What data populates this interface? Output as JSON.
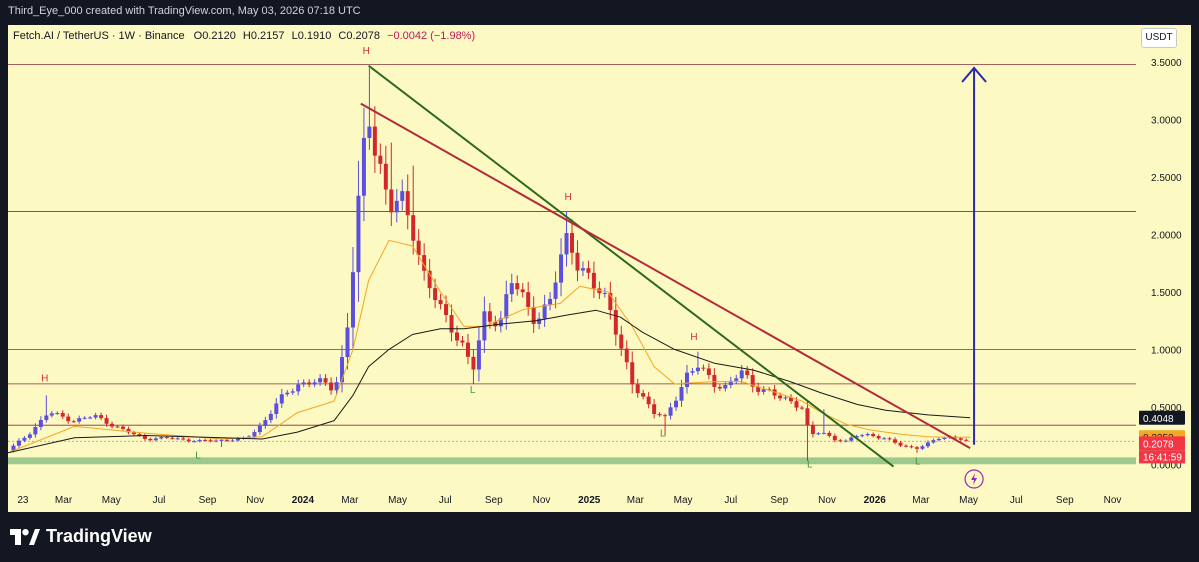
{
  "header": {
    "created_text": "Third_Eye_000 created with TradingView.com, May 03, 2026 07:18 UTC"
  },
  "legend": {
    "symbol_line": "Fetch.AI / TetherUS · 1W · Binance",
    "open": "O0.2120",
    "high": "H0.2157",
    "low": "L0.1910",
    "close": "C0.2078",
    "change": "−0.0042 (−1.98%)"
  },
  "currency_button": "USDT",
  "footer": {
    "brand": "TradingView"
  },
  "colors": {
    "background": "#fdf9c2",
    "up_candle": "#5b4fe0",
    "down_candle": "#d2282c",
    "ma_fast": "#f5a623",
    "ma_slow": "#1a1a1a",
    "green_trendline": "#2d6a1e",
    "red_trendline": "#b32a3a",
    "arrow": "#2b2aa8",
    "support_zone": "#7cb87a",
    "h_label": "#d32f2f",
    "l_label": "#3a9a3a"
  },
  "chart_data": {
    "type": "candlestick",
    "symbol": "Fetch.AI / TetherUS",
    "interval": "1W",
    "exchange": "Binance",
    "ylim": [
      -0.05,
      3.65
    ],
    "y_ticks": [
      "3.5000",
      "3.0000",
      "2.5000",
      "2.0000",
      "1.5000",
      "1.0000",
      "0.5000",
      "0.0000"
    ],
    "y_tick_values": [
      3.5,
      3.0,
      2.5,
      2.0,
      1.5,
      1.0,
      0.5,
      0.0
    ],
    "x_ticks": [
      {
        "label": "23",
        "date": "2023-01-01",
        "bold": false
      },
      {
        "label": "Mar",
        "date": "2023-03-01",
        "bold": false
      },
      {
        "label": "May",
        "date": "2023-05-01",
        "bold": false
      },
      {
        "label": "Jul",
        "date": "2023-07-01",
        "bold": false
      },
      {
        "label": "Sep",
        "date": "2023-09-01",
        "bold": false
      },
      {
        "label": "Nov",
        "date": "2023-11-01",
        "bold": false
      },
      {
        "label": "2024",
        "date": "2024-01-01",
        "bold": true
      },
      {
        "label": "Mar",
        "date": "2024-03-01",
        "bold": false
      },
      {
        "label": "May",
        "date": "2024-05-01",
        "bold": false
      },
      {
        "label": "Jul",
        "date": "2024-07-01",
        "bold": false
      },
      {
        "label": "Sep",
        "date": "2024-09-01",
        "bold": false
      },
      {
        "label": "Nov",
        "date": "2024-11-01",
        "bold": false
      },
      {
        "label": "2025",
        "date": "2025-01-01",
        "bold": true
      },
      {
        "label": "Mar",
        "date": "2025-03-01",
        "bold": false
      },
      {
        "label": "May",
        "date": "2025-05-01",
        "bold": false
      },
      {
        "label": "Jul",
        "date": "2025-07-01",
        "bold": false
      },
      {
        "label": "Sep",
        "date": "2025-09-01",
        "bold": false
      },
      {
        "label": "Nov",
        "date": "2025-11-01",
        "bold": false
      },
      {
        "label": "2026",
        "date": "2026-01-01",
        "bold": true
      },
      {
        "label": "Mar",
        "date": "2026-03-01",
        "bold": false
      },
      {
        "label": "May",
        "date": "2026-05-01",
        "bold": false
      },
      {
        "label": "Jul",
        "date": "2026-07-01",
        "bold": false
      },
      {
        "label": "Sep",
        "date": "2026-09-01",
        "bold": false
      },
      {
        "label": "Nov",
        "date": "2026-11-01",
        "bold": false
      }
    ],
    "x_range": [
      "2022-12-20",
      "2026-12-01"
    ],
    "close_path": [
      [
        "2022-12-20",
        0.12
      ],
      [
        "2023-01-15",
        0.26
      ],
      [
        "2023-02-10",
        0.45
      ],
      [
        "2023-03-15",
        0.38
      ],
      [
        "2023-04-10",
        0.42
      ],
      [
        "2023-05-15",
        0.3
      ],
      [
        "2023-06-15",
        0.22
      ],
      [
        "2023-07-15",
        0.23
      ],
      [
        "2023-08-20",
        0.2
      ],
      [
        "2023-09-20",
        0.21
      ],
      [
        "2023-10-20",
        0.22
      ],
      [
        "2023-11-10",
        0.35
      ],
      [
        "2023-12-01",
        0.55
      ],
      [
        "2023-12-25",
        0.7
      ],
      [
        "2024-01-20",
        0.72
      ],
      [
        "2024-02-10",
        0.66
      ],
      [
        "2024-02-25",
        1.05
      ],
      [
        "2024-03-05",
        1.7
      ],
      [
        "2024-03-15",
        2.5
      ],
      [
        "2024-03-25",
        3.05
      ],
      [
        "2024-04-05",
        2.75
      ],
      [
        "2024-04-20",
        2.2
      ],
      [
        "2024-05-05",
        2.3
      ],
      [
        "2024-05-20",
        2.1
      ],
      [
        "2024-06-05",
        1.6
      ],
      [
        "2024-06-25",
        1.35
      ],
      [
        "2024-07-10",
        1.2
      ],
      [
        "2024-07-25",
        1.0
      ],
      [
        "2024-08-05",
        0.8
      ],
      [
        "2024-08-20",
        1.3
      ],
      [
        "2024-09-10",
        1.25
      ],
      [
        "2024-09-25",
        1.6
      ],
      [
        "2024-10-10",
        1.45
      ],
      [
        "2024-10-25",
        1.25
      ],
      [
        "2024-11-10",
        1.35
      ],
      [
        "2024-11-25",
        1.8
      ],
      [
        "2024-12-05",
        2.05
      ],
      [
        "2024-12-20",
        1.65
      ],
      [
        "2025-01-10",
        1.55
      ],
      [
        "2025-01-25",
        1.45
      ],
      [
        "2025-02-10",
        1.0
      ],
      [
        "2025-02-25",
        0.7
      ],
      [
        "2025-03-10",
        0.6
      ],
      [
        "2025-03-25",
        0.45
      ],
      [
        "2025-04-08",
        0.4
      ],
      [
        "2025-04-20",
        0.55
      ],
      [
        "2025-05-05",
        0.78
      ],
      [
        "2025-05-20",
        0.85
      ],
      [
        "2025-06-10",
        0.7
      ],
      [
        "2025-06-25",
        0.68
      ],
      [
        "2025-07-15",
        0.8
      ],
      [
        "2025-07-30",
        0.68
      ],
      [
        "2025-08-15",
        0.65
      ],
      [
        "2025-08-30",
        0.58
      ],
      [
        "2025-09-15",
        0.55
      ],
      [
        "2025-09-30",
        0.5
      ],
      [
        "2025-10-10",
        0.25
      ],
      [
        "2025-10-25",
        0.28
      ],
      [
        "2025-11-10",
        0.22
      ],
      [
        "2025-11-25",
        0.2
      ],
      [
        "2025-12-10",
        0.25
      ],
      [
        "2025-12-25",
        0.26
      ],
      [
        "2026-01-15",
        0.22
      ],
      [
        "2026-02-05",
        0.16
      ],
      [
        "2026-02-25",
        0.14
      ],
      [
        "2026-03-10",
        0.18
      ],
      [
        "2026-03-25",
        0.23
      ],
      [
        "2026-04-10",
        0.24
      ],
      [
        "2026-04-20",
        0.22
      ],
      [
        "2026-05-03",
        0.2078
      ]
    ],
    "wick_highs": [
      [
        "2023-02-10",
        0.6
      ],
      [
        "2024-03-25",
        3.45
      ],
      [
        "2024-04-20",
        2.8
      ],
      [
        "2024-05-20",
        2.6
      ],
      [
        "2024-12-05",
        2.2
      ],
      [
        "2025-05-20",
        0.98
      ],
      [
        "2025-10-25",
        0.48
      ]
    ],
    "wick_lows": [
      [
        "2023-09-20",
        0.15
      ],
      [
        "2024-08-05",
        0.7
      ],
      [
        "2025-04-08",
        0.25
      ],
      [
        "2025-10-10",
        0.03
      ],
      [
        "2026-02-25",
        0.1
      ]
    ],
    "ma_fast": [
      [
        "2022-12-20",
        0.1
      ],
      [
        "2023-03-15",
        0.33
      ],
      [
        "2023-06-15",
        0.27
      ],
      [
        "2023-09-20",
        0.22
      ],
      [
        "2023-11-10",
        0.24
      ],
      [
        "2023-12-25",
        0.45
      ],
      [
        "2024-02-10",
        0.55
      ],
      [
        "2024-03-05",
        1.0
      ],
      [
        "2024-03-25",
        1.6
      ],
      [
        "2024-04-20",
        1.95
      ],
      [
        "2024-05-20",
        1.9
      ],
      [
        "2024-06-25",
        1.5
      ],
      [
        "2024-07-25",
        1.2
      ],
      [
        "2024-08-20",
        1.2
      ],
      [
        "2024-10-10",
        1.35
      ],
      [
        "2024-11-25",
        1.4
      ],
      [
        "2024-12-20",
        1.55
      ],
      [
        "2025-01-25",
        1.5
      ],
      [
        "2025-02-25",
        1.2
      ],
      [
        "2025-03-25",
        0.85
      ],
      [
        "2025-04-20",
        0.7
      ],
      [
        "2025-06-10",
        0.72
      ],
      [
        "2025-07-15",
        0.72
      ],
      [
        "2025-08-30",
        0.62
      ],
      [
        "2025-09-30",
        0.55
      ],
      [
        "2025-10-25",
        0.45
      ],
      [
        "2025-11-25",
        0.35
      ],
      [
        "2025-12-25",
        0.3
      ],
      [
        "2026-02-05",
        0.26
      ],
      [
        "2026-03-10",
        0.24
      ],
      [
        "2026-04-10",
        0.235
      ],
      [
        "2026-05-03",
        0.2352
      ]
    ],
    "ma_slow": [
      [
        "2022-12-20",
        0.1
      ],
      [
        "2023-03-15",
        0.23
      ],
      [
        "2023-06-15",
        0.25
      ],
      [
        "2023-09-20",
        0.23
      ],
      [
        "2023-11-10",
        0.22
      ],
      [
        "2023-12-25",
        0.28
      ],
      [
        "2024-02-10",
        0.38
      ],
      [
        "2024-03-05",
        0.6
      ],
      [
        "2024-03-25",
        0.85
      ],
      [
        "2024-04-20",
        1.0
      ],
      [
        "2024-05-20",
        1.13
      ],
      [
        "2024-06-25",
        1.18
      ],
      [
        "2024-07-25",
        1.18
      ],
      [
        "2024-09-10",
        1.22
      ],
      [
        "2024-10-25",
        1.25
      ],
      [
        "2024-12-05",
        1.3
      ],
      [
        "2025-01-10",
        1.34
      ],
      [
        "2025-02-10",
        1.28
      ],
      [
        "2025-03-10",
        1.15
      ],
      [
        "2025-04-20",
        1.0
      ],
      [
        "2025-06-10",
        0.88
      ],
      [
        "2025-07-30",
        0.82
      ],
      [
        "2025-09-15",
        0.72
      ],
      [
        "2025-10-25",
        0.62
      ],
      [
        "2025-12-10",
        0.52
      ],
      [
        "2026-01-15",
        0.47
      ],
      [
        "2026-03-10",
        0.43
      ],
      [
        "2026-05-03",
        0.4048
      ]
    ],
    "horizontal_levels": [
      3.48,
      2.2,
      1.0,
      0.7,
      0.34
    ],
    "support_zone": [
      0.0,
      0.06
    ],
    "dotted_level": 0.2,
    "trendline_green": {
      "from": [
        "2024-03-25",
        3.47
      ],
      "to": [
        "2026-01-25",
        -0.02
      ]
    },
    "trendline_red": {
      "from": [
        "2024-03-15",
        3.14
      ],
      "to": [
        "2026-05-03",
        0.14
      ]
    },
    "target_arrow": {
      "date": "2026-05-08",
      "from": 0.17,
      "to": 3.45
    },
    "markers": [
      {
        "text": "H",
        "date": "2023-02-05",
        "price": 0.72
      },
      {
        "text": "L",
        "date": "2023-08-20",
        "price": 0.05
      },
      {
        "text": "H",
        "date": "2024-03-22",
        "price": 3.57
      },
      {
        "text": "L",
        "date": "2024-08-05",
        "price": 0.62
      },
      {
        "text": "H",
        "date": "2024-12-05",
        "price": 2.3
      },
      {
        "text": "L",
        "date": "2025-04-05",
        "price": 0.24
      },
      {
        "text": "H",
        "date": "2025-05-15",
        "price": 1.08
      },
      {
        "text": "L",
        "date": "2025-10-10",
        "price": -0.03
      },
      {
        "text": "L",
        "date": "2026-02-25",
        "price": 0.0
      }
    ],
    "price_tags": [
      {
        "label": "0.4048",
        "price": 0.4048,
        "kind": "ma_slow"
      },
      {
        "label": "0.2352",
        "price": 0.2352,
        "kind": "ma_fast"
      },
      {
        "label": "0.2078",
        "price": 0.2078,
        "kind": "last"
      }
    ],
    "countdown": "16:41:59"
  }
}
